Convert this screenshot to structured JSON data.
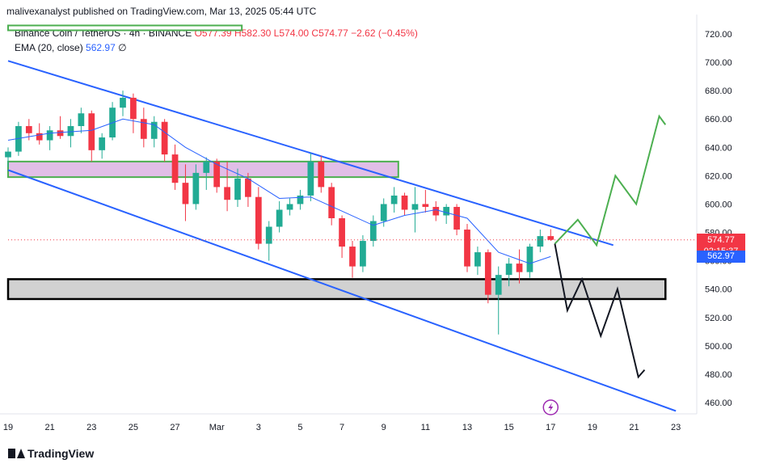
{
  "header": {
    "publisher_line": "malivexanalyst published on TradingView.com, Mar 13, 2025 05:44 UTC",
    "symbol": "Binance Coin / TetherUS · 4h · BINANCE",
    "open": "O577.39",
    "high": "H582.30",
    "low": "L574.00",
    "close": "C574.77",
    "change": "−2.62 (−0.45%)",
    "ema_label": "EMA (20, close)",
    "ema_value": "562.97",
    "ema_suffix": "∅"
  },
  "price_tags": {
    "last_price": "574.77",
    "countdown": "02:15:37",
    "ema_price": "562.97"
  },
  "brand": {
    "text": "TradingView"
  },
  "colors": {
    "up": "#22ab94",
    "down": "#f23645",
    "channel": "#2962ff",
    "ema": "#2962ff",
    "projection_up": "#4caf50",
    "projection_down": "#131722",
    "zone_resistance": "#e1bee7",
    "zone_support": "#d1d1d1"
  },
  "chart_data": {
    "type": "candlestick",
    "y_axis": {
      "ticks": [
        460,
        480,
        500,
        520,
        540,
        560,
        580,
        600,
        620,
        640,
        660,
        680,
        700,
        720
      ],
      "range": [
        452,
        728
      ]
    },
    "x_axis": {
      "ticks": [
        "19",
        "21",
        "23",
        "25",
        "27",
        "Mar",
        "3",
        "5",
        "7",
        "9",
        "11",
        "13",
        "15",
        "17",
        "19",
        "21",
        "23"
      ],
      "range_days": [
        -10,
        23
      ]
    },
    "last_price": 574.77,
    "ema_last": 562.97,
    "candles": [
      [
        -10.0,
        633,
        640,
        626,
        637
      ],
      [
        -9.5,
        637,
        658,
        634,
        655
      ],
      [
        -9.0,
        655,
        660,
        645,
        650
      ],
      [
        -8.5,
        650,
        657,
        642,
        645
      ],
      [
        -8.0,
        645,
        655,
        638,
        652
      ],
      [
        -7.5,
        652,
        662,
        646,
        648
      ],
      [
        -7.0,
        648,
        660,
        640,
        655
      ],
      [
        -6.5,
        655,
        668,
        650,
        664
      ],
      [
        -6.0,
        664,
        666,
        630,
        638
      ],
      [
        -5.5,
        638,
        650,
        632,
        647
      ],
      [
        -5.0,
        647,
        672,
        645,
        668
      ],
      [
        -4.5,
        668,
        680,
        662,
        675
      ],
      [
        -4.0,
        675,
        678,
        650,
        660
      ],
      [
        -3.5,
        660,
        668,
        640,
        646
      ],
      [
        -3.0,
        646,
        662,
        640,
        658
      ],
      [
        -2.5,
        658,
        660,
        630,
        635
      ],
      [
        -2.0,
        635,
        642,
        610,
        615
      ],
      [
        -1.5,
        615,
        628,
        588,
        600
      ],
      [
        -1.0,
        600,
        628,
        596,
        622
      ],
      [
        -0.5,
        622,
        633,
        610,
        630
      ],
      [
        0.0,
        630,
        632,
        608,
        612
      ],
      [
        0.5,
        612,
        630,
        595,
        603
      ],
      [
        1.0,
        603,
        625,
        598,
        618
      ],
      [
        1.5,
        618,
        622,
        598,
        605
      ],
      [
        2.0,
        605,
        612,
        568,
        572
      ],
      [
        2.5,
        572,
        588,
        560,
        584
      ],
      [
        3.0,
        584,
        602,
        580,
        596
      ],
      [
        3.5,
        596,
        604,
        592,
        600
      ],
      [
        4.0,
        600,
        610,
        596,
        606
      ],
      [
        4.5,
        606,
        636,
        602,
        630
      ],
      [
        5.0,
        630,
        634,
        608,
        612
      ],
      [
        5.5,
        612,
        615,
        585,
        590
      ],
      [
        6.0,
        590,
        592,
        562,
        570
      ],
      [
        6.5,
        570,
        574,
        548,
        556
      ],
      [
        7.0,
        556,
        578,
        552,
        574
      ],
      [
        7.5,
        574,
        592,
        570,
        588
      ],
      [
        8.0,
        588,
        604,
        584,
        600
      ],
      [
        8.5,
        600,
        612,
        594,
        606
      ],
      [
        9.0,
        606,
        608,
        592,
        596
      ],
      [
        9.5,
        596,
        612,
        580,
        600
      ],
      [
        10.0,
        600,
        610,
        594,
        598
      ],
      [
        10.5,
        598,
        602,
        588,
        592
      ],
      [
        11.0,
        592,
        600,
        586,
        598
      ],
      [
        11.5,
        598,
        600,
        578,
        582
      ],
      [
        12.0,
        582,
        586,
        552,
        556
      ],
      [
        12.5,
        556,
        570,
        550,
        566
      ],
      [
        13.0,
        566,
        568,
        530,
        536
      ],
      [
        13.5,
        536,
        556,
        508,
        550
      ],
      [
        14.0,
        550,
        562,
        542,
        558
      ],
      [
        14.5,
        558,
        568,
        544,
        552
      ],
      [
        15.0,
        552,
        572,
        548,
        570
      ],
      [
        15.5,
        570,
        582,
        566,
        577.39
      ],
      [
        16.0,
        577.39,
        582.3,
        574,
        574.77
      ]
    ],
    "ema": [
      [
        -10.0,
        645
      ],
      [
        -8.0,
        650
      ],
      [
        -6.0,
        652
      ],
      [
        -4.5,
        660
      ],
      [
        -3.0,
        656
      ],
      [
        -1.5,
        640
      ],
      [
        0.0,
        628
      ],
      [
        1.5,
        618
      ],
      [
        3.0,
        604
      ],
      [
        4.5,
        605
      ],
      [
        6.0,
        595
      ],
      [
        7.5,
        585
      ],
      [
        9.0,
        592
      ],
      [
        10.5,
        596
      ],
      [
        12.0,
        590
      ],
      [
        13.5,
        566
      ],
      [
        15.0,
        558
      ],
      [
        16.0,
        562.97
      ]
    ],
    "channel_upper": [
      [
        -10.0,
        701
      ],
      [
        19.0,
        571
      ]
    ],
    "channel_lower": [
      [
        -10.0,
        624
      ],
      [
        22.0,
        454
      ]
    ],
    "zones": [
      {
        "name": "resistance-zone",
        "from_x": -10.0,
        "to_x": 8.7,
        "y_top": 630,
        "y_bottom": 619
      },
      {
        "name": "support-zone",
        "from_x": -10.0,
        "to_x": 21.5,
        "y_top": 547,
        "y_bottom": 533
      }
    ],
    "projection_up": [
      [
        16.2,
        572
      ],
      [
        17.3,
        589
      ],
      [
        18.2,
        571
      ],
      [
        19.1,
        620
      ],
      [
        20.1,
        600
      ],
      [
        21.2,
        662
      ],
      [
        21.5,
        656
      ]
    ],
    "projection_down": [
      [
        16.2,
        572
      ],
      [
        16.8,
        525
      ],
      [
        17.5,
        547
      ],
      [
        18.4,
        507
      ],
      [
        19.2,
        540
      ],
      [
        20.2,
        478
      ],
      [
        20.5,
        483
      ]
    ]
  }
}
